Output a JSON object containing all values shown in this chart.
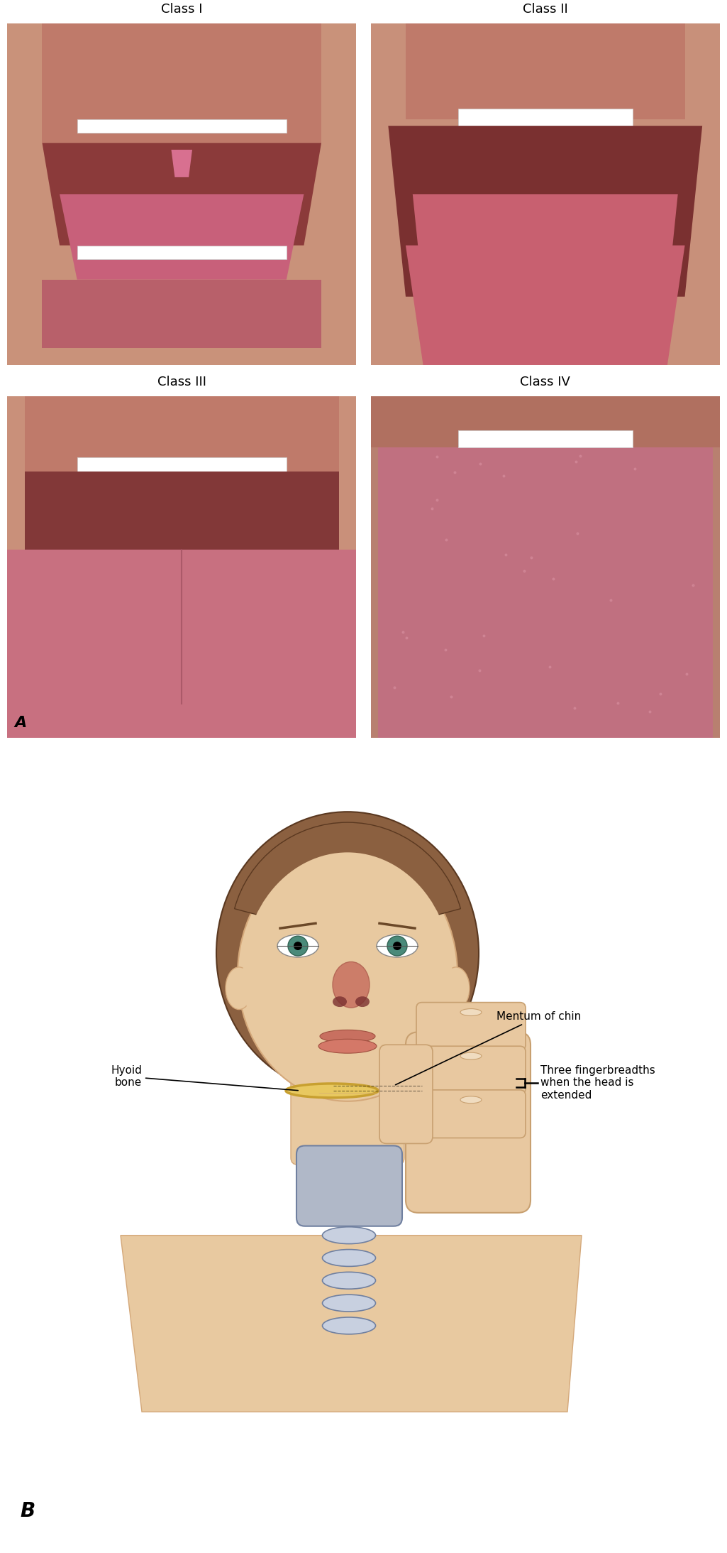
{
  "title_A": "A",
  "title_B": "B",
  "labels": [
    "Class I",
    "Class II",
    "Class III",
    "Class IV"
  ],
  "annotation_1": "Mentum of chin",
  "annotation_2": "Three fingerbreadths\nwhen the head is\nextended",
  "annotation_3": "Hyoid\nbone",
  "background_color": "#ffffff",
  "text_color": "#000000",
  "label_fontsize": 13,
  "annotation_fontsize": 11,
  "skin_color": "#e8c9a0",
  "skin_shadow": "#d4a87a",
  "hair_color": "#8b6040",
  "hair_dark": "#5a3820",
  "eye_color": "#4a8a7a",
  "lip_color": "#c87060",
  "tongue_color": "#c87080",
  "hyoid_color": "#e8c860",
  "thyroid_color": "#b0b8c8"
}
